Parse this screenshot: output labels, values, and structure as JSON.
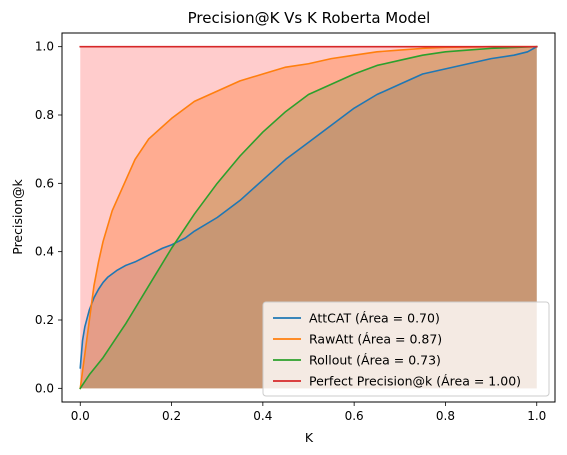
{
  "colors": {
    "attcat": "#1f77b4",
    "rawatt": "#ff7f0e",
    "rollout": "#2ca02c",
    "perfect": "#d62728"
  },
  "chart_data": {
    "type": "area",
    "title": "Precision@K Vs K Roberta Model",
    "xlabel": "K",
    "ylabel": "Precision@k",
    "xlim": [
      -0.04,
      1.04
    ],
    "ylim": [
      -0.04,
      1.04
    ],
    "xticks": [
      "0.0",
      "0.2",
      "0.4",
      "0.6",
      "0.8",
      "1.0"
    ],
    "yticks": [
      "0.0",
      "0.2",
      "0.4",
      "0.6",
      "0.8",
      "1.0"
    ],
    "grid": false,
    "legend_position": "lower-right",
    "series": [
      {
        "name": "AttCAT (Área = 0.70)",
        "color": "#1f77b4",
        "fill": "#1f77b4",
        "fill_alpha": 0.2,
        "points": [
          [
            0,
            0.06
          ],
          [
            0.005,
            0.14
          ],
          [
            0.01,
            0.18
          ],
          [
            0.02,
            0.23
          ],
          [
            0.03,
            0.265
          ],
          [
            0.04,
            0.29
          ],
          [
            0.05,
            0.31
          ],
          [
            0.06,
            0.325
          ],
          [
            0.08,
            0.345
          ],
          [
            0.1,
            0.36
          ],
          [
            0.12,
            0.37
          ],
          [
            0.15,
            0.39
          ],
          [
            0.18,
            0.41
          ],
          [
            0.2,
            0.42
          ],
          [
            0.23,
            0.44
          ],
          [
            0.25,
            0.46
          ],
          [
            0.3,
            0.5
          ],
          [
            0.35,
            0.55
          ],
          [
            0.4,
            0.61
          ],
          [
            0.45,
            0.67
          ],
          [
            0.5,
            0.72
          ],
          [
            0.55,
            0.77
          ],
          [
            0.6,
            0.82
          ],
          [
            0.65,
            0.86
          ],
          [
            0.7,
            0.89
          ],
          [
            0.75,
            0.92
          ],
          [
            0.8,
            0.935
          ],
          [
            0.85,
            0.95
          ],
          [
            0.9,
            0.965
          ],
          [
            0.95,
            0.975
          ],
          [
            0.98,
            0.985
          ],
          [
            1.0,
            1.0
          ]
        ]
      },
      {
        "name": "RawAtt (Área = 0.87)",
        "color": "#ff7f0e",
        "fill": "#ff7f0e",
        "fill_alpha": 0.3,
        "points": [
          [
            0,
            0.0
          ],
          [
            0.01,
            0.1
          ],
          [
            0.02,
            0.2
          ],
          [
            0.03,
            0.3
          ],
          [
            0.04,
            0.37
          ],
          [
            0.05,
            0.43
          ],
          [
            0.07,
            0.52
          ],
          [
            0.1,
            0.61
          ],
          [
            0.12,
            0.67
          ],
          [
            0.15,
            0.73
          ],
          [
            0.2,
            0.79
          ],
          [
            0.25,
            0.84
          ],
          [
            0.3,
            0.87
          ],
          [
            0.35,
            0.9
          ],
          [
            0.4,
            0.92
          ],
          [
            0.45,
            0.94
          ],
          [
            0.5,
            0.95
          ],
          [
            0.55,
            0.965
          ],
          [
            0.6,
            0.975
          ],
          [
            0.65,
            0.985
          ],
          [
            0.7,
            0.99
          ],
          [
            0.75,
            0.995
          ],
          [
            0.8,
            0.998
          ],
          [
            0.9,
            1.0
          ],
          [
            1.0,
            1.0
          ]
        ]
      },
      {
        "name": "Rollout (Área = 0.73)",
        "color": "#2ca02c",
        "fill": "#2ca02c",
        "fill_alpha": 0.2,
        "points": [
          [
            0,
            0.0
          ],
          [
            0.02,
            0.04
          ],
          [
            0.05,
            0.09
          ],
          [
            0.08,
            0.15
          ],
          [
            0.1,
            0.19
          ],
          [
            0.15,
            0.3
          ],
          [
            0.2,
            0.41
          ],
          [
            0.25,
            0.51
          ],
          [
            0.3,
            0.6
          ],
          [
            0.35,
            0.68
          ],
          [
            0.4,
            0.75
          ],
          [
            0.45,
            0.81
          ],
          [
            0.5,
            0.86
          ],
          [
            0.55,
            0.89
          ],
          [
            0.6,
            0.92
          ],
          [
            0.65,
            0.945
          ],
          [
            0.7,
            0.96
          ],
          [
            0.75,
            0.975
          ],
          [
            0.8,
            0.985
          ],
          [
            0.85,
            0.99
          ],
          [
            0.9,
            0.995
          ],
          [
            1.0,
            1.0
          ]
        ]
      },
      {
        "name": "Perfect Precision@k (Área = 1.00)",
        "color": "#d62728",
        "fill": "#ff0000",
        "fill_alpha": 0.2,
        "points": [
          [
            0,
            1.0
          ],
          [
            1.0,
            1.0
          ]
        ]
      }
    ]
  }
}
